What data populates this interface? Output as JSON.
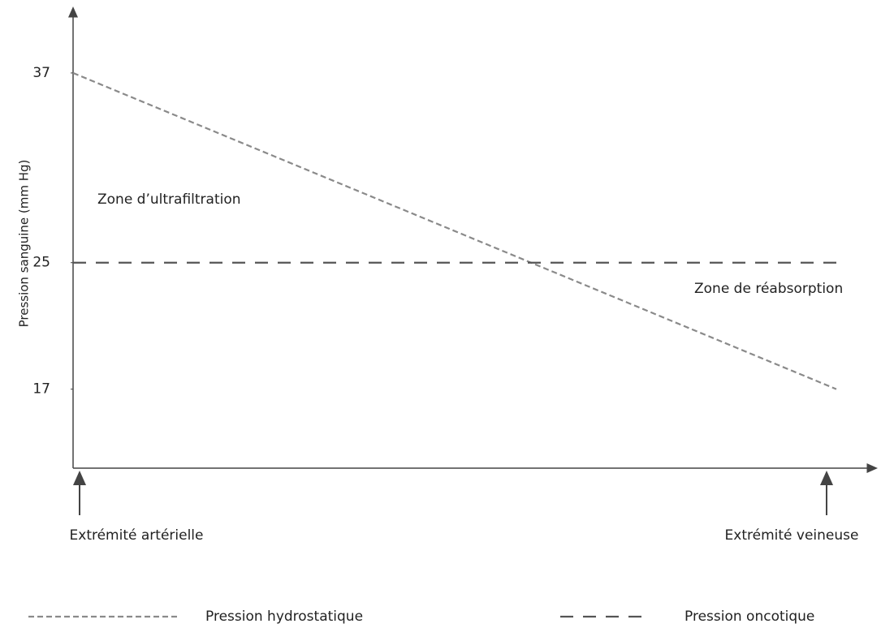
{
  "chart_data": {
    "type": "line",
    "y_label": "Pression sanguine (mm Hg)",
    "categories": [
      "Extrémité artérielle",
      "Extrémité veineuse"
    ],
    "series": [
      {
        "name": "Pression hydrostatique",
        "color": "#8a8a8a",
        "values": [
          37,
          17
        ]
      },
      {
        "name": "Pression oncotique",
        "color": "#555555",
        "values": [
          25,
          25
        ]
      }
    ],
    "annotations": [
      "Zone d’ultrafiltration",
      "Zone de réabsorption"
    ],
    "ylim": [
      12,
      41
    ],
    "yticks": [
      17,
      25,
      37
    ]
  }
}
